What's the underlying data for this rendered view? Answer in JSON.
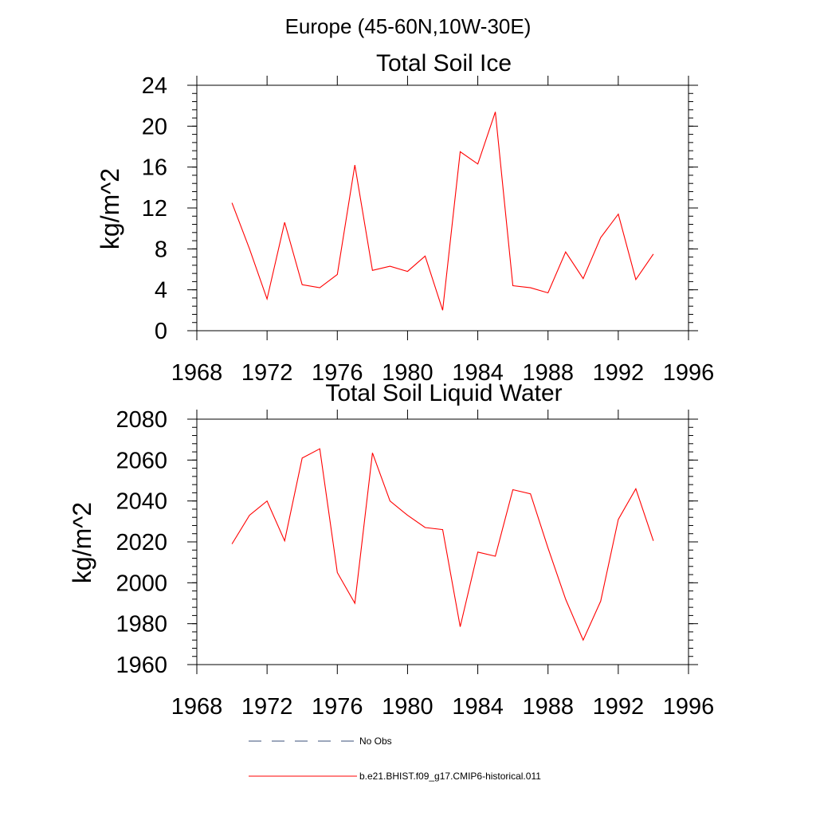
{
  "figure": {
    "title": "Europe (45-60N,10W-30E)",
    "line_color": "#ff0000",
    "axis_color": "#000000",
    "legend_obs_color": "#3a4f7a"
  },
  "legend": {
    "entries": [
      {
        "label": "No Obs",
        "style": "dashed",
        "color": "#3a4f7a"
      },
      {
        "label": "b.e21.BHIST.f09_g17.CMIP6-historical.011",
        "style": "solid",
        "color": "#ff0000"
      }
    ]
  },
  "chart_data": [
    {
      "type": "line",
      "title": "Total Soil Ice",
      "xlabel": "",
      "ylabel": "kg/m^2",
      "xlim": [
        1968,
        1996
      ],
      "ylim": [
        0,
        24
      ],
      "xticks": [
        1968,
        1972,
        1976,
        1980,
        1984,
        1988,
        1992,
        1996
      ],
      "yticks": [
        0,
        4,
        8,
        12,
        16,
        20,
        24
      ],
      "grid": false,
      "series": [
        {
          "name": "b.e21.BHIST.f09_g17.CMIP6-historical.011",
          "color": "#ff0000",
          "x": [
            1970,
            1971,
            1972,
            1973,
            1974,
            1975,
            1976,
            1977,
            1978,
            1979,
            1980,
            1981,
            1982,
            1983,
            1984,
            1985,
            1986,
            1987,
            1988,
            1989,
            1990,
            1991,
            1992,
            1993,
            1994
          ],
          "values": [
            12.5,
            8.0,
            3.1,
            10.6,
            4.5,
            4.2,
            5.5,
            16.2,
            5.9,
            6.3,
            5.8,
            7.3,
            2.0,
            17.5,
            16.3,
            21.4,
            4.4,
            4.2,
            3.7,
            7.7,
            5.1,
            9.1,
            11.4,
            5.0,
            7.5
          ]
        }
      ]
    },
    {
      "type": "line",
      "title": "Total Soil Liquid Water",
      "xlabel": "",
      "ylabel": "kg/m^2",
      "xlim": [
        1968,
        1996
      ],
      "ylim": [
        1960,
        2080
      ],
      "xticks": [
        1968,
        1972,
        1976,
        1980,
        1984,
        1988,
        1992,
        1996
      ],
      "yticks": [
        1960,
        1980,
        2000,
        2020,
        2040,
        2060,
        2080
      ],
      "grid": false,
      "series": [
        {
          "name": "b.e21.BHIST.f09_g17.CMIP6-historical.011",
          "color": "#ff0000",
          "x": [
            1970,
            1971,
            1972,
            1973,
            1974,
            1975,
            1976,
            1977,
            1978,
            1979,
            1980,
            1981,
            1982,
            1983,
            1984,
            1985,
            1986,
            1987,
            1988,
            1989,
            1990,
            1991,
            1992,
            1993,
            1994
          ],
          "values": [
            2019,
            2033,
            2040,
            2020.5,
            2061,
            2065.5,
            2005,
            1990,
            2063.5,
            2040,
            2033,
            2027,
            2026,
            1978.5,
            2015,
            2013,
            2045.5,
            2043.5,
            2017,
            1992,
            1972,
            1991,
            2031,
            2046,
            2020.5
          ]
        }
      ]
    }
  ]
}
